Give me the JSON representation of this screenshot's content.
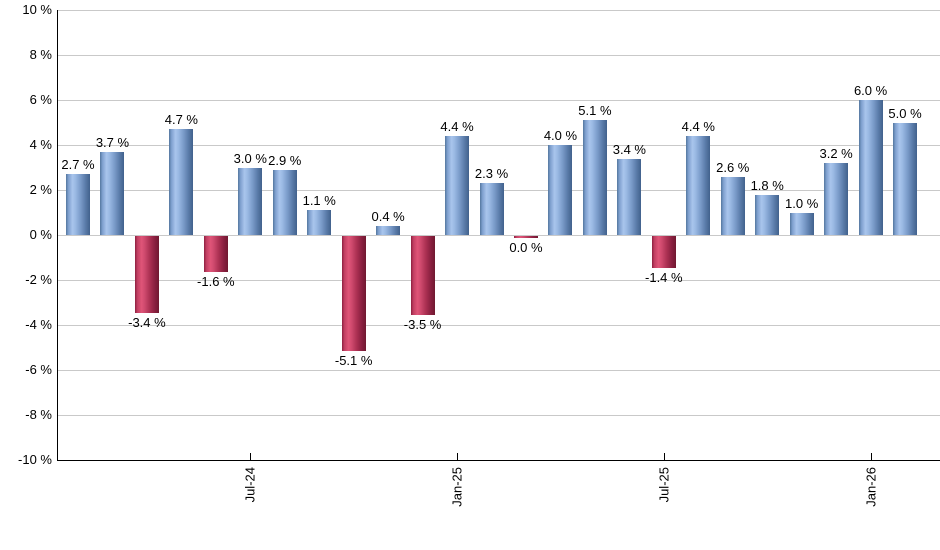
{
  "chart_data": {
    "type": "bar",
    "title": "",
    "xlabel": "",
    "ylabel": "",
    "unit": "%",
    "ylim": [
      -10,
      10
    ],
    "grid": "horizontal, every 2 percent",
    "legend": "none",
    "y_ticks": [
      {
        "value": 10,
        "label": "10 %"
      },
      {
        "value": 8,
        "label": "8 %"
      },
      {
        "value": 6,
        "label": "6 %"
      },
      {
        "value": 4,
        "label": "4 %"
      },
      {
        "value": 2,
        "label": "2 %"
      },
      {
        "value": 0,
        "label": "0 %"
      },
      {
        "value": -2,
        "label": "-2 %"
      },
      {
        "value": -4,
        "label": "-4 %"
      },
      {
        "value": -6,
        "label": "-6 %"
      },
      {
        "value": -8,
        "label": "-8 %"
      },
      {
        "value": -10,
        "label": "-10 %"
      }
    ],
    "x_ticks": [
      {
        "label": "Jul-24",
        "bar_index": 5
      },
      {
        "label": "Jan-25",
        "bar_index": 11
      },
      {
        "label": "Jul-25",
        "bar_index": 17
      },
      {
        "label": "Jan-26",
        "bar_index": 23
      }
    ],
    "bars": [
      {
        "value": 2.7,
        "label": "2.7 %",
        "color": "positive"
      },
      {
        "value": 3.7,
        "label": "3.7 %",
        "color": "positive"
      },
      {
        "value": -3.4,
        "label": "-3.4 %",
        "color": "negative"
      },
      {
        "value": 4.7,
        "label": "4.7 %",
        "color": "positive"
      },
      {
        "value": -1.6,
        "label": "-1.6 %",
        "color": "negative"
      },
      {
        "value": 3.0,
        "label": "3.0 %",
        "color": "positive"
      },
      {
        "value": 2.9,
        "label": "2.9 %",
        "color": "positive"
      },
      {
        "value": 1.1,
        "label": "1.1 %",
        "color": "positive"
      },
      {
        "value": -5.1,
        "label": "-5.1 %",
        "color": "negative"
      },
      {
        "value": 0.4,
        "label": "0.4 %",
        "color": "positive"
      },
      {
        "value": -3.5,
        "label": "-3.5 %",
        "color": "negative"
      },
      {
        "value": 4.4,
        "label": "4.4 %",
        "color": "positive"
      },
      {
        "value": 2.3,
        "label": "2.3 %",
        "color": "positive"
      },
      {
        "value": 0.0,
        "label": "0.0 %",
        "color": "negative"
      },
      {
        "value": 4.0,
        "label": "4.0 %",
        "color": "positive"
      },
      {
        "value": 5.1,
        "label": "5.1 %",
        "color": "positive"
      },
      {
        "value": 3.4,
        "label": "3.4 %",
        "color": "positive"
      },
      {
        "value": -1.4,
        "label": "-1.4 %",
        "color": "negative"
      },
      {
        "value": 4.4,
        "label": "4.4 %",
        "color": "positive"
      },
      {
        "value": 2.6,
        "label": "2.6 %",
        "color": "positive"
      },
      {
        "value": 1.8,
        "label": "1.8 %",
        "color": "positive"
      },
      {
        "value": 1.0,
        "label": "1.0 %",
        "color": "positive"
      },
      {
        "value": 3.2,
        "label": "3.2 %",
        "color": "positive"
      },
      {
        "value": 6.0,
        "label": "6.0 %",
        "color": "positive"
      },
      {
        "value": 5.0,
        "label": "5.0 %",
        "color": "positive"
      }
    ],
    "colors": {
      "positive_bar_mid": "#a9c5ec",
      "positive_bar_edge": "#41618c",
      "negative_bar_mid": "#e05578",
      "negative_bar_edge": "#701830",
      "gridline": "#c9c9c9",
      "axis": "#000000",
      "label_text": "#000000",
      "background": "#ffffff"
    }
  }
}
